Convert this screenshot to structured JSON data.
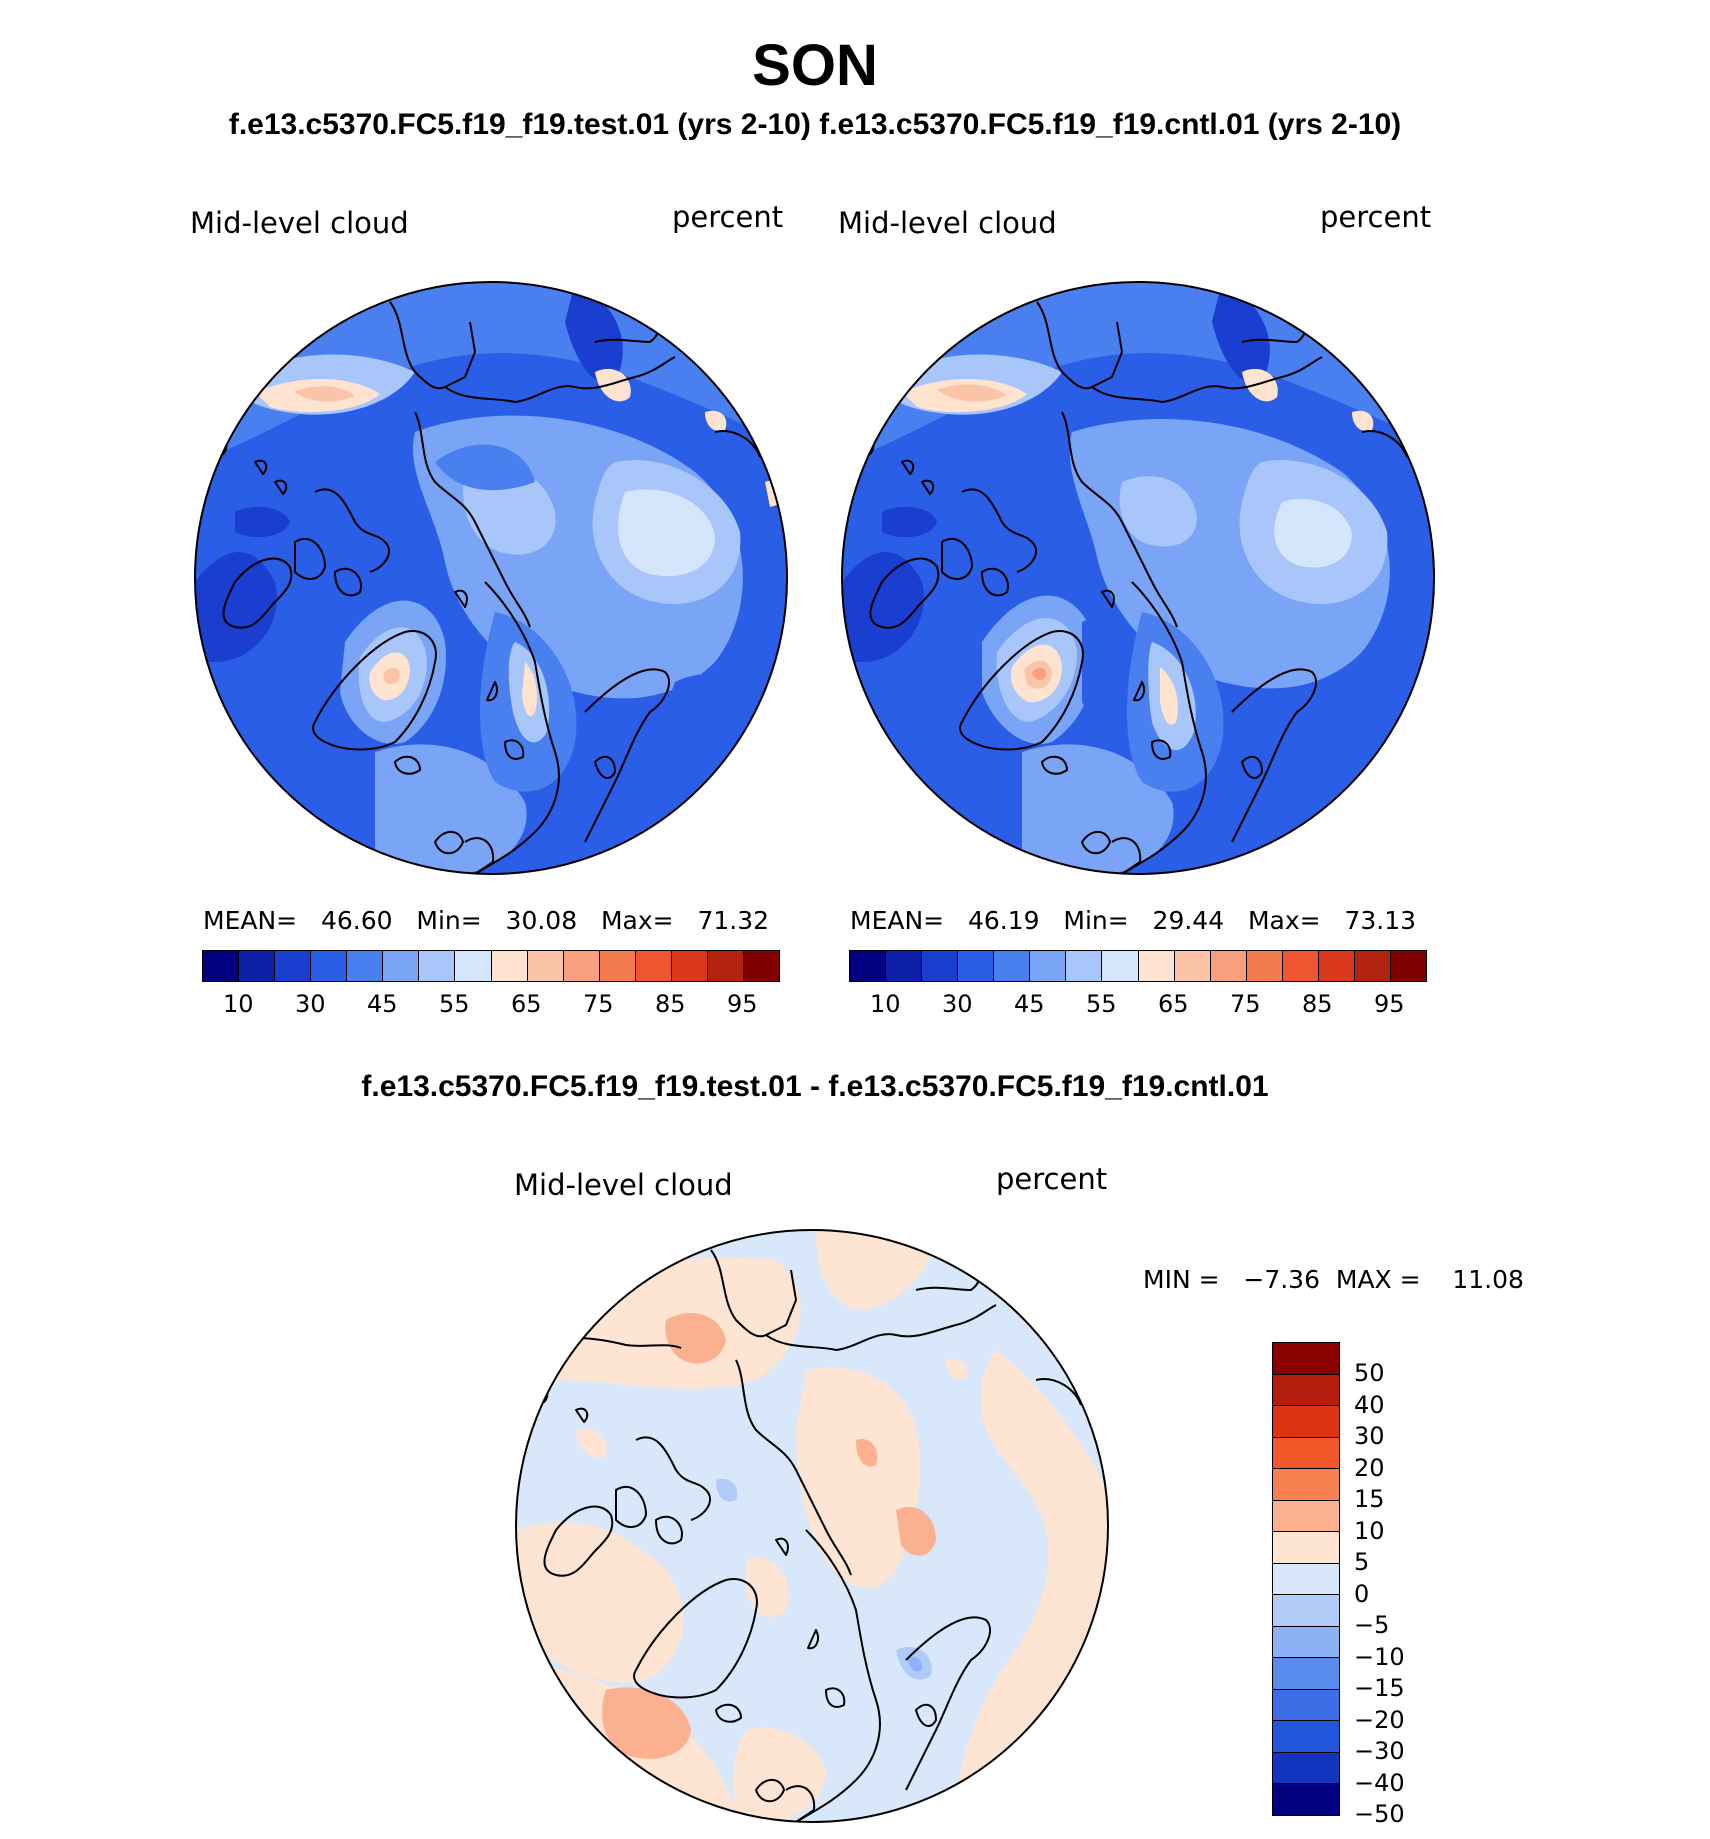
{
  "title": "SON",
  "subtitle": "f.e13.c5370.FC5.f19_f19.test.01 (yrs 2-10) f.e13.c5370.FC5.f19_f19.cntl.01 (yrs 2-10)",
  "diff_title": "f.e13.c5370.FC5.f19_f19.test.01 - f.e13.c5370.FC5.f19_f19.cntl.01",
  "panels": [
    {
      "left_label": "Mid-level cloud",
      "right_label": "percent",
      "stats": {
        "mean_label": "MEAN=",
        "mean": "46.60",
        "min_label": "Min=",
        "min": "30.08",
        "max_label": "Max=",
        "max": "71.32"
      }
    },
    {
      "left_label": "Mid-level cloud",
      "right_label": "percent",
      "stats": {
        "mean_label": "MEAN=",
        "mean": "46.19",
        "min_label": "Min=",
        "min": "29.44",
        "max_label": "Max=",
        "max": "73.13"
      }
    }
  ],
  "diff_panel": {
    "left_label": "Mid-level cloud",
    "right_label": "percent",
    "minmax": "MIN =   −7.36  MAX =    11.08"
  },
  "colorbar_abs": {
    "colors": [
      "#000080",
      "#0d1fa8",
      "#1a3fd0",
      "#2b5ee6",
      "#4a7ff0",
      "#7aa4f5",
      "#a9c6fa",
      "#d5e5fb",
      "#fde3d0",
      "#fbc4a8",
      "#f8a07e",
      "#f47a50",
      "#ef5530",
      "#d9381c",
      "#b32410",
      "#800000"
    ],
    "tick_labels": [
      "10",
      "30",
      "45",
      "55",
      "65",
      "75",
      "85",
      "95"
    ]
  },
  "colorbar_diff": {
    "colors": [
      "#8b0000",
      "#b51e0c",
      "#dd3414",
      "#f2582a",
      "#f88150",
      "#fbb18f",
      "#fde4d3",
      "#d8e7fa",
      "#b0cbf8",
      "#8cb1f5",
      "#5a8cee",
      "#3d6ee8",
      "#2155de",
      "#1236bf",
      "#000080"
    ],
    "tick_labels": [
      "50",
      "40",
      "30",
      "20",
      "15",
      "10",
      "5",
      "0",
      "−5",
      "−10",
      "−15",
      "−20",
      "−30",
      "−40",
      "−50"
    ]
  }
}
